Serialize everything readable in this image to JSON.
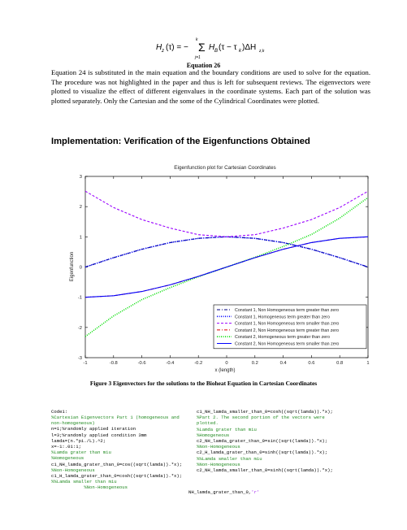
{
  "equation": {
    "lhs": "H",
    "lhs_sub": "z",
    "arg": "(τ) = −",
    "sum_top": "k",
    "sum_bottom": "j=1",
    "term": "H",
    "term_sub": "B",
    "term_arg": "(τ − τ",
    "term_arg_sub": "k",
    "term_close": ")ΔH",
    "delta_sub": "z,k",
    "label": "Equation 26"
  },
  "paragraph": "Equation 24 is substituted in the main equation and the boundary conditions are used to solve for the equation. The procedure was not highlighted in the paper and thus is left for subsequent reviews. The eigenvectors were plotted to visualize the effect of different eigenvalues in the coordinate systems. Each part of the solution was plotted separately. Only the Cartesian and the some of the Cylindrical Coordinates were plotted.",
  "heading": "Implementation: Verification of the Eigenfunctions Obtained",
  "figure_caption": "Figure 3 Eigenvectors for the solutions to the Bioheat Equation in Cartesian Coordinates",
  "code": {
    "title": "Code1:",
    "left_lines": [
      {
        "t": "%Cartesian Eigenvectors Part 1 (homogeneous and",
        "k": "c"
      },
      {
        "t": "non-homogeneous)",
        "k": "c"
      },
      {
        "t": "n=1;%randomly applied iteration",
        "k": "m"
      },
      {
        "t": "l=3;%randomly applied condition 3mm",
        "k": "m"
      },
      {
        "t": "lamda=(n.*pi./L).^2;",
        "k": "n"
      },
      {
        "t": "x=-1:.01:1;",
        "k": "n"
      },
      {
        "t": "%Lamda grater than miu",
        "k": "c"
      },
      {
        "t": "%Homogeneous",
        "k": "c"
      },
      {
        "t": "c1_NH_lamda_grater_than_0=cos((sqrt(lamda)).*x);",
        "k": "n"
      },
      {
        "t": "%Non-Homogeneous",
        "k": "c"
      },
      {
        "t": "c1_H_lamda_grater_than_0=cosh((sqrt(lamda)).*x);",
        "k": "n"
      },
      {
        "t": "%%Lamda smaller than miu",
        "k": "c"
      },
      {
        "t": "            %Non-Homogeneous",
        "k": "c"
      }
    ],
    "right_lines": [
      {
        "t": "c1_NH_lamda_smaller_than_0=cosh((sqrt(lamda)).*x);",
        "k": "n"
      },
      {
        "t": "%Part 2. The second portion of the vectors were",
        "k": "c"
      },
      {
        "t": "plotted.",
        "k": "c"
      },
      {
        "t": "%Lamda grater than miu",
        "k": "c"
      },
      {
        "t": "%Homogeneous",
        "k": "c"
      },
      {
        "t": "c2_NH_lamda_grater_than_0=sin((sqrt(lamda)).*x);",
        "k": "n"
      },
      {
        "t": "%Non-Homogeneous",
        "k": "c"
      },
      {
        "t": "c2_H_lamda_grater_than_0=sinh((sqrt(lamda)).*x);",
        "k": "n"
      },
      {
        "t": "%%Lamda smaller than miu",
        "k": "c"
      },
      {
        "t": "%Non-Homogeneous",
        "k": "c"
      },
      {
        "t": "c2_NH_lamda_smaller_than_0=sinh((sqrt(lamda)).*x);",
        "k": "n"
      }
    ],
    "tail_text": "NH_lamda_grater_than_0,",
    "tail_string": "'r'"
  },
  "colors": {
    "navy": "#000080",
    "blue": "#0000ff",
    "purple": "#9900ff",
    "red": "#dd0000",
    "green": "#00dd00",
    "comment": "#228b22"
  },
  "chart_data": {
    "type": "line",
    "title": "Eigenfunction plot for Cartesian Coordinates",
    "xlabel": "x (length)",
    "ylabel": "Eigenfunction",
    "xlim": [
      -1,
      1
    ],
    "ylim": [
      -3,
      3
    ],
    "xticks": [
      -1,
      -0.8,
      -0.6,
      -0.4,
      -0.2,
      0,
      0.2,
      0.4,
      0.6,
      0.8,
      1
    ],
    "yticks": [
      -3,
      -2,
      -1,
      0,
      1,
      2,
      3
    ],
    "xtick_labels": [
      "-1",
      "-0.8",
      "-0.6",
      "-0.4",
      "-0.2",
      "0",
      "0.2",
      "0.4",
      "0.6",
      "0.8",
      "1"
    ],
    "ytick_labels": [
      "-3",
      "-2",
      "-1",
      "0",
      "1",
      "2",
      "3"
    ],
    "grid": false,
    "legend_position": "bottom-right",
    "series": [
      {
        "name": "Constant 1, Non Homogeneous term greater than zero",
        "color": "#000080",
        "style": "dash-dot",
        "x": [
          -1,
          -0.8,
          -0.6,
          -0.4,
          -0.2,
          0,
          0.2,
          0.4,
          0.6,
          0.8,
          1
        ],
        "y": [
          0,
          0.31,
          0.59,
          0.81,
          0.95,
          1,
          0.95,
          0.81,
          0.59,
          0.31,
          0
        ]
      },
      {
        "name": "Constant 1, Homogeneous term greater than zero",
        "color": "#0000ff",
        "style": "dots",
        "x": [
          -1,
          -0.8,
          -0.6,
          -0.4,
          -0.2,
          0,
          0.2,
          0.4,
          0.6,
          0.8,
          1
        ],
        "y": [
          0,
          0.31,
          0.59,
          0.81,
          0.95,
          1,
          0.95,
          0.81,
          0.59,
          0.31,
          0
        ]
      },
      {
        "name": "Constant 1, Non Homogeneous term smaller than zero",
        "color": "#9900ff",
        "style": "dash",
        "x": [
          -1,
          -0.8,
          -0.6,
          -0.4,
          -0.2,
          0,
          0.2,
          0.4,
          0.6,
          0.8,
          1
        ],
        "y": [
          2.51,
          1.97,
          1.57,
          1.29,
          1.07,
          1,
          1.07,
          1.29,
          1.57,
          1.97,
          2.51
        ]
      },
      {
        "name": "Constant 2, Non Homogeneous term greater than zero",
        "color": "#dd0000",
        "style": "dash-dot",
        "x": [
          -1,
          -0.8,
          -0.6,
          -0.4,
          -0.2,
          0,
          0.2,
          0.4,
          0.6,
          0.8,
          1
        ],
        "y": [
          -1,
          -0.95,
          -0.81,
          -0.59,
          -0.31,
          0,
          0.31,
          0.59,
          0.81,
          0.95,
          1
        ]
      },
      {
        "name": "Constant 2, Homogeneous term greater than zero",
        "color": "#00dd00",
        "style": "dots",
        "x": [
          -1,
          -0.8,
          -0.6,
          -0.4,
          -0.2,
          0,
          0.2,
          0.4,
          0.6,
          0.8,
          1
        ],
        "y": [
          -2.3,
          -1.62,
          -1.08,
          -0.68,
          -0.32,
          0,
          0.32,
          0.68,
          1.08,
          1.62,
          2.3
        ]
      },
      {
        "name": "Constant 2, Non Homogeneous term smaller than zero",
        "color": "#0000ff",
        "style": "solid",
        "x": [
          -1,
          -0.8,
          -0.6,
          -0.4,
          -0.2,
          0,
          0.2,
          0.4,
          0.6,
          0.8,
          1
        ],
        "y": [
          -1,
          -0.95,
          -0.81,
          -0.59,
          -0.31,
          0,
          0.31,
          0.59,
          0.81,
          0.95,
          1
        ]
      }
    ]
  }
}
